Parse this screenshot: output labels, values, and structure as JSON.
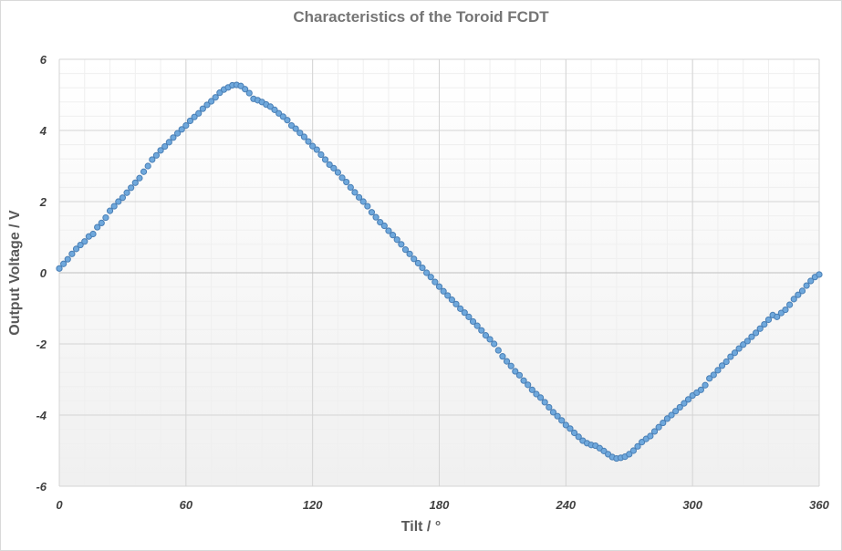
{
  "chart_data": {
    "type": "scatter",
    "title": "Characteristics of the Toroid FCDT",
    "xlabel": "Tilt / °",
    "ylabel": "Output Voltage / V",
    "xlim": [
      0,
      360
    ],
    "ylim": [
      -6,
      6
    ],
    "x_ticks": [
      0,
      60,
      120,
      180,
      240,
      300,
      360
    ],
    "y_ticks": [
      6,
      4,
      2,
      0,
      -2,
      -4,
      -6
    ],
    "grid": {
      "major": true,
      "minor": true
    },
    "legend": "none",
    "marker_color": "#6fa8dc",
    "marker_edge_color": "#4a7fb5",
    "series": [
      {
        "x": [
          0,
          2,
          4,
          6,
          8,
          10,
          12,
          14,
          16,
          18,
          20,
          22,
          24,
          26,
          28,
          30,
          32,
          34,
          36,
          38,
          40,
          42,
          44,
          46,
          48,
          50,
          52,
          54,
          56,
          58,
          60,
          62,
          64,
          66,
          68,
          70,
          72,
          74,
          76,
          78,
          80,
          82,
          84,
          86,
          88,
          90,
          92,
          94,
          96,
          98,
          100,
          102,
          104,
          106,
          108,
          110,
          112,
          114,
          116,
          118,
          120,
          122,
          124,
          126,
          128,
          130,
          132,
          134,
          136,
          138,
          140,
          142,
          144,
          146,
          148,
          150,
          152,
          154,
          156,
          158,
          160,
          162,
          164,
          166,
          168,
          170,
          172,
          174,
          176,
          178,
          180,
          182,
          184,
          186,
          188,
          190,
          192,
          194,
          196,
          198,
          200,
          202,
          204,
          206,
          208,
          210,
          212,
          214,
          216,
          218,
          220,
          222,
          224,
          226,
          228,
          230,
          232,
          234,
          236,
          238,
          240,
          242,
          244,
          246,
          248,
          250,
          252,
          254,
          256,
          258,
          260,
          262,
          264,
          266,
          268,
          270,
          272,
          274,
          276,
          278,
          280,
          282,
          284,
          286,
          288,
          290,
          292,
          294,
          296,
          298,
          300,
          302,
          304,
          306,
          308,
          310,
          312,
          314,
          316,
          318,
          320,
          322,
          324,
          326,
          328,
          330,
          332,
          334,
          336,
          338,
          340,
          342,
          344,
          346,
          348,
          350,
          352,
          354,
          356,
          358,
          360
        ],
        "y": [
          0.12,
          0.25,
          0.38,
          0.53,
          0.67,
          0.78,
          0.88,
          1.02,
          1.09,
          1.28,
          1.4,
          1.55,
          1.74,
          1.87,
          2.0,
          2.11,
          2.25,
          2.39,
          2.53,
          2.66,
          2.84,
          3.0,
          3.18,
          3.3,
          3.44,
          3.55,
          3.67,
          3.8,
          3.92,
          4.03,
          4.14,
          4.27,
          4.38,
          4.48,
          4.61,
          4.72,
          4.82,
          4.93,
          5.06,
          5.15,
          5.21,
          5.27,
          5.28,
          5.25,
          5.16,
          5.05,
          4.89,
          4.85,
          4.8,
          4.73,
          4.67,
          4.58,
          4.48,
          4.39,
          4.29,
          4.14,
          4.05,
          3.93,
          3.82,
          3.69,
          3.56,
          3.46,
          3.32,
          3.18,
          3.04,
          2.94,
          2.82,
          2.67,
          2.55,
          2.4,
          2.26,
          2.12,
          2.0,
          1.87,
          1.7,
          1.56,
          1.42,
          1.32,
          1.18,
          1.06,
          0.93,
          0.8,
          0.65,
          0.53,
          0.39,
          0.27,
          0.14,
          0.0,
          -0.12,
          -0.26,
          -0.39,
          -0.52,
          -0.64,
          -0.76,
          -0.88,
          -1.01,
          -1.12,
          -1.24,
          -1.37,
          -1.49,
          -1.62,
          -1.76,
          -1.87,
          -2.0,
          -2.18,
          -2.35,
          -2.49,
          -2.62,
          -2.77,
          -2.88,
          -3.03,
          -3.15,
          -3.29,
          -3.41,
          -3.51,
          -3.64,
          -3.78,
          -3.92,
          -4.03,
          -4.15,
          -4.28,
          -4.38,
          -4.5,
          -4.61,
          -4.72,
          -4.79,
          -4.84,
          -4.86,
          -4.93,
          -5.01,
          -5.1,
          -5.18,
          -5.22,
          -5.2,
          -5.17,
          -5.1,
          -5.0,
          -4.88,
          -4.76,
          -4.67,
          -4.59,
          -4.46,
          -4.34,
          -4.22,
          -4.1,
          -4.0,
          -3.89,
          -3.78,
          -3.67,
          -3.56,
          -3.45,
          -3.37,
          -3.29,
          -3.16,
          -2.97,
          -2.87,
          -2.74,
          -2.61,
          -2.5,
          -2.36,
          -2.25,
          -2.13,
          -2.02,
          -1.92,
          -1.8,
          -1.69,
          -1.57,
          -1.45,
          -1.32,
          -1.19,
          -1.24,
          -1.13,
          -1.04,
          -0.9,
          -0.74,
          -0.62,
          -0.51,
          -0.36,
          -0.23,
          -0.12,
          -0.05
        ]
      }
    ]
  }
}
